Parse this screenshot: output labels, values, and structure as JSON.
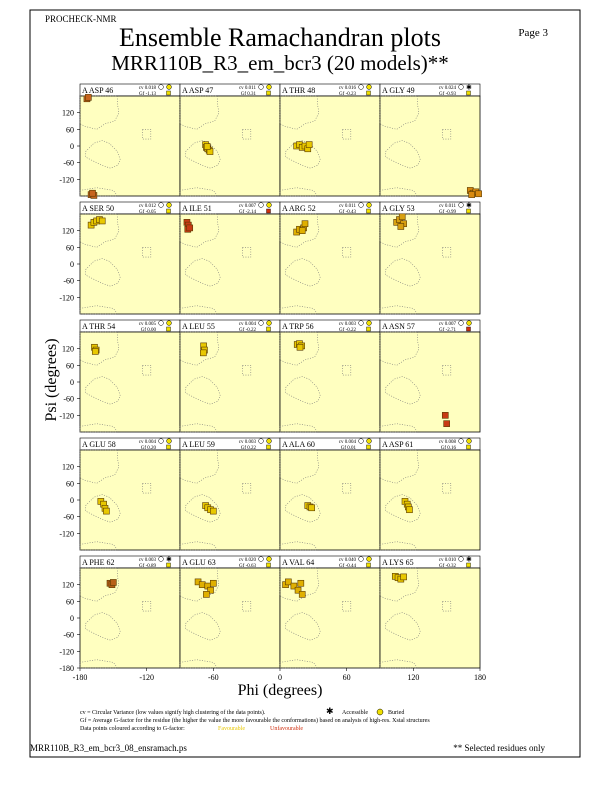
{
  "header": {
    "program": "PROCHECK-NMR",
    "page": "Page  3",
    "title": "Ensemble Ramachandran plots",
    "subtitle": "MRR110B_R3_em_bcr3 (20 models)**"
  },
  "axes": {
    "xlabel": "Phi (degrees)",
    "ylabel": "Psi (degrees)",
    "xlim": [
      -180,
      180
    ],
    "ylim": [
      -180,
      180
    ],
    "yticks": [
      -120,
      -60,
      0,
      60,
      120
    ],
    "bottom_ytick": -180,
    "xticks": [
      -180,
      -120,
      -60,
      0,
      60,
      120,
      180
    ]
  },
  "chart_data": [
    {
      "type": "scatter",
      "title": "A ASP 46",
      "cv": "cv 0.018",
      "gf": "Gf -1.13",
      "buried": true,
      "gf_color": "#f0e000",
      "color": "#c8641e",
      "x": [
        -155,
        -150,
        -140,
        -130,
        -135
      ],
      "values": [
        170,
        175,
        -175,
        -178,
        -170
      ]
    },
    {
      "type": "scatter",
      "title": "A ASP 47",
      "cv": "cv 0.011",
      "gf": "Gf 0.31",
      "buried": true,
      "gf_color": "#f0e000",
      "color": "#e8c800",
      "x": [
        -88,
        -85,
        -80,
        -75,
        -72,
        -82
      ],
      "values": [
        5,
        -5,
        -10,
        -15,
        -20,
        -2
      ]
    },
    {
      "type": "scatter",
      "title": "A THR 48",
      "cv": "cv 0.016",
      "gf": "Gf -0.23",
      "buried": true,
      "gf_color": "#f0e000",
      "color": "#e8c800",
      "x": [
        -120,
        -110,
        -100,
        -90,
        -80,
        -75
      ],
      "values": [
        0,
        5,
        -5,
        0,
        -10,
        5
      ]
    },
    {
      "type": "scatter",
      "title": "A GLY 49",
      "cv": "cv 0.024",
      "gf": "Gf -0.93",
      "buried": false,
      "gf_color": "#f0e000",
      "color": "#d88a10",
      "x": [
        145,
        155,
        165,
        175,
        150
      ],
      "values": [
        -160,
        -170,
        -165,
        -172,
        -175
      ]
    },
    {
      "type": "scatter",
      "title": "A SER 50",
      "cv": "cv 0.012",
      "gf": "Gf -0.05",
      "buried": true,
      "gf_color": "#f0e000",
      "color": "#e8c800",
      "x": [
        -140,
        -130,
        -120,
        -110,
        -100
      ],
      "values": [
        140,
        150,
        155,
        160,
        155
      ]
    },
    {
      "type": "scatter",
      "title": "A ILE 51",
      "cv": "cv 0.007",
      "gf": "Gf -2.14",
      "buried": true,
      "gf_color": "#d03010",
      "color": "#c83a14",
      "x": [
        -155,
        -150,
        -152,
        -145
      ],
      "values": [
        150,
        140,
        125,
        130
      ]
    },
    {
      "type": "scatter",
      "title": "A ARG 52",
      "cv": "cv 0.011",
      "gf": "Gf -0.43",
      "buried": true,
      "gf_color": "#f0e000",
      "color": "#e0b000",
      "x": [
        -120,
        -110,
        -95,
        -90,
        -100
      ],
      "values": [
        115,
        125,
        130,
        145,
        120
      ]
    },
    {
      "type": "scatter",
      "title": "A GLY 53",
      "cv": "cv 0.011",
      "gf": "Gf -0.99",
      "buried": false,
      "gf_color": "#f0e000",
      "color": "#d8a010",
      "x": [
        -120,
        -110,
        -100,
        -95,
        -105
      ],
      "values": [
        150,
        160,
        170,
        145,
        135
      ]
    },
    {
      "type": "scatter",
      "title": "A THR 54",
      "cv": "cv 0.005",
      "gf": "Gf 0.00",
      "buried": true,
      "gf_color": "#f0e000",
      "color": "#e8c800",
      "x": [
        -128,
        -122,
        -125
      ],
      "values": [
        125,
        115,
        110
      ]
    },
    {
      "type": "scatter",
      "title": "A LEU 55",
      "cv": "cv 0.004",
      "gf": "Gf -0.22",
      "buried": true,
      "gf_color": "#f0e000",
      "color": "#e8c800",
      "x": [
        -95,
        -92,
        -96
      ],
      "values": [
        130,
        115,
        105
      ]
    },
    {
      "type": "scatter",
      "title": "A TRP 56",
      "cv": "cv 0.003",
      "gf": "Gf -0.22",
      "buried": true,
      "gf_color": "#f0e000",
      "color": "#e8c800",
      "x": [
        -118,
        -110,
        -102,
        -108
      ],
      "values": [
        135,
        138,
        130,
        125
      ]
    },
    {
      "type": "scatter",
      "title": "A ASN 57",
      "cv": "cv 0.007",
      "gf": "Gf -2.71",
      "buried": true,
      "gf_color": "#d03010",
      "color": "#c83a14",
      "x": [
        55,
        60
      ],
      "values": [
        -120,
        -150
      ]
    },
    {
      "type": "scatter",
      "title": "A GLU 58",
      "cv": "cv 0.004",
      "gf": "Gf 0.20",
      "buried": true,
      "gf_color": "#f0e000",
      "color": "#e8c800",
      "x": [
        -105,
        -95,
        -90,
        -85
      ],
      "values": [
        -5,
        -15,
        -30,
        -40
      ]
    },
    {
      "type": "scatter",
      "title": "A LEU 59",
      "cv": "cv 0.003",
      "gf": "Gf 0.22",
      "buried": true,
      "gf_color": "#f0e000",
      "color": "#e8c800",
      "x": [
        -88,
        -80,
        -70,
        -60
      ],
      "values": [
        -20,
        -28,
        -35,
        -40
      ]
    },
    {
      "type": "scatter",
      "title": "A ALA 60",
      "cv": "cv 0.004",
      "gf": "Gf 0.01",
      "buried": true,
      "gf_color": "#f0e000",
      "color": "#e8c800",
      "x": [
        -80,
        -72,
        -66
      ],
      "values": [
        -20,
        -25,
        -28
      ]
    },
    {
      "type": "scatter",
      "title": "A ASP 61",
      "cv": "cv 0.008",
      "gf": "Gf 0.16",
      "buried": true,
      "gf_color": "#f0e000",
      "color": "#e8c800",
      "x": [
        -90,
        -82,
        -78,
        -74
      ],
      "values": [
        -5,
        -15,
        -25,
        -35
      ]
    },
    {
      "type": "scatter",
      "title": "A PHE 62",
      "cv": "cv 0.003",
      "gf": "Gf -0.89",
      "buried": false,
      "gf_color": "#f0e000",
      "color": "#b86018",
      "x": [
        -72,
        -65,
        -60
      ],
      "values": [
        125,
        120,
        128
      ]
    },
    {
      "type": "scatter",
      "title": "A GLU 63",
      "cv": "cv 0.020",
      "gf": "Gf -0.63",
      "buried": true,
      "gf_color": "#f0e000",
      "color": "#e0b000",
      "x": [
        -115,
        -100,
        -80,
        -70,
        -60,
        -85
      ],
      "values": [
        130,
        120,
        115,
        100,
        125,
        85
      ]
    },
    {
      "type": "scatter",
      "title": "A VAL 64",
      "cv": "cv 0.040",
      "gf": "Gf -0.44",
      "buried": true,
      "gf_color": "#f0e000",
      "color": "#e0b000",
      "x": [
        -160,
        -150,
        -130,
        -115,
        -105,
        -100
      ],
      "values": [
        120,
        130,
        115,
        100,
        125,
        85
      ]
    },
    {
      "type": "scatter",
      "title": "A LYS 65",
      "cv": "cv 0.010",
      "gf": "Gf -0.32",
      "buried": false,
      "gf_color": "#f0e000",
      "color": "#e8c800",
      "x": [
        -125,
        -115,
        -105,
        -95
      ],
      "values": [
        150,
        145,
        140,
        148
      ]
    }
  ],
  "legend": {
    "cv_note": "cv = Circular Variance (low values signify high clustering of the data points).",
    "accessible": "Accessible",
    "buried": "Buried",
    "gf_note": "Gf = Average G-factor for the residue (the higher the value the more favourable the conformations) based on analysis of high-res. Xstal structures",
    "colour_note": "Data points coloured according to G-factor:",
    "favourable": "Favourable",
    "unfavourable": "Unfavourable"
  },
  "footer": {
    "file": "MRR110B_R3_em_bcr3_08_ensramach.ps",
    "note": "** Selected residues only"
  }
}
